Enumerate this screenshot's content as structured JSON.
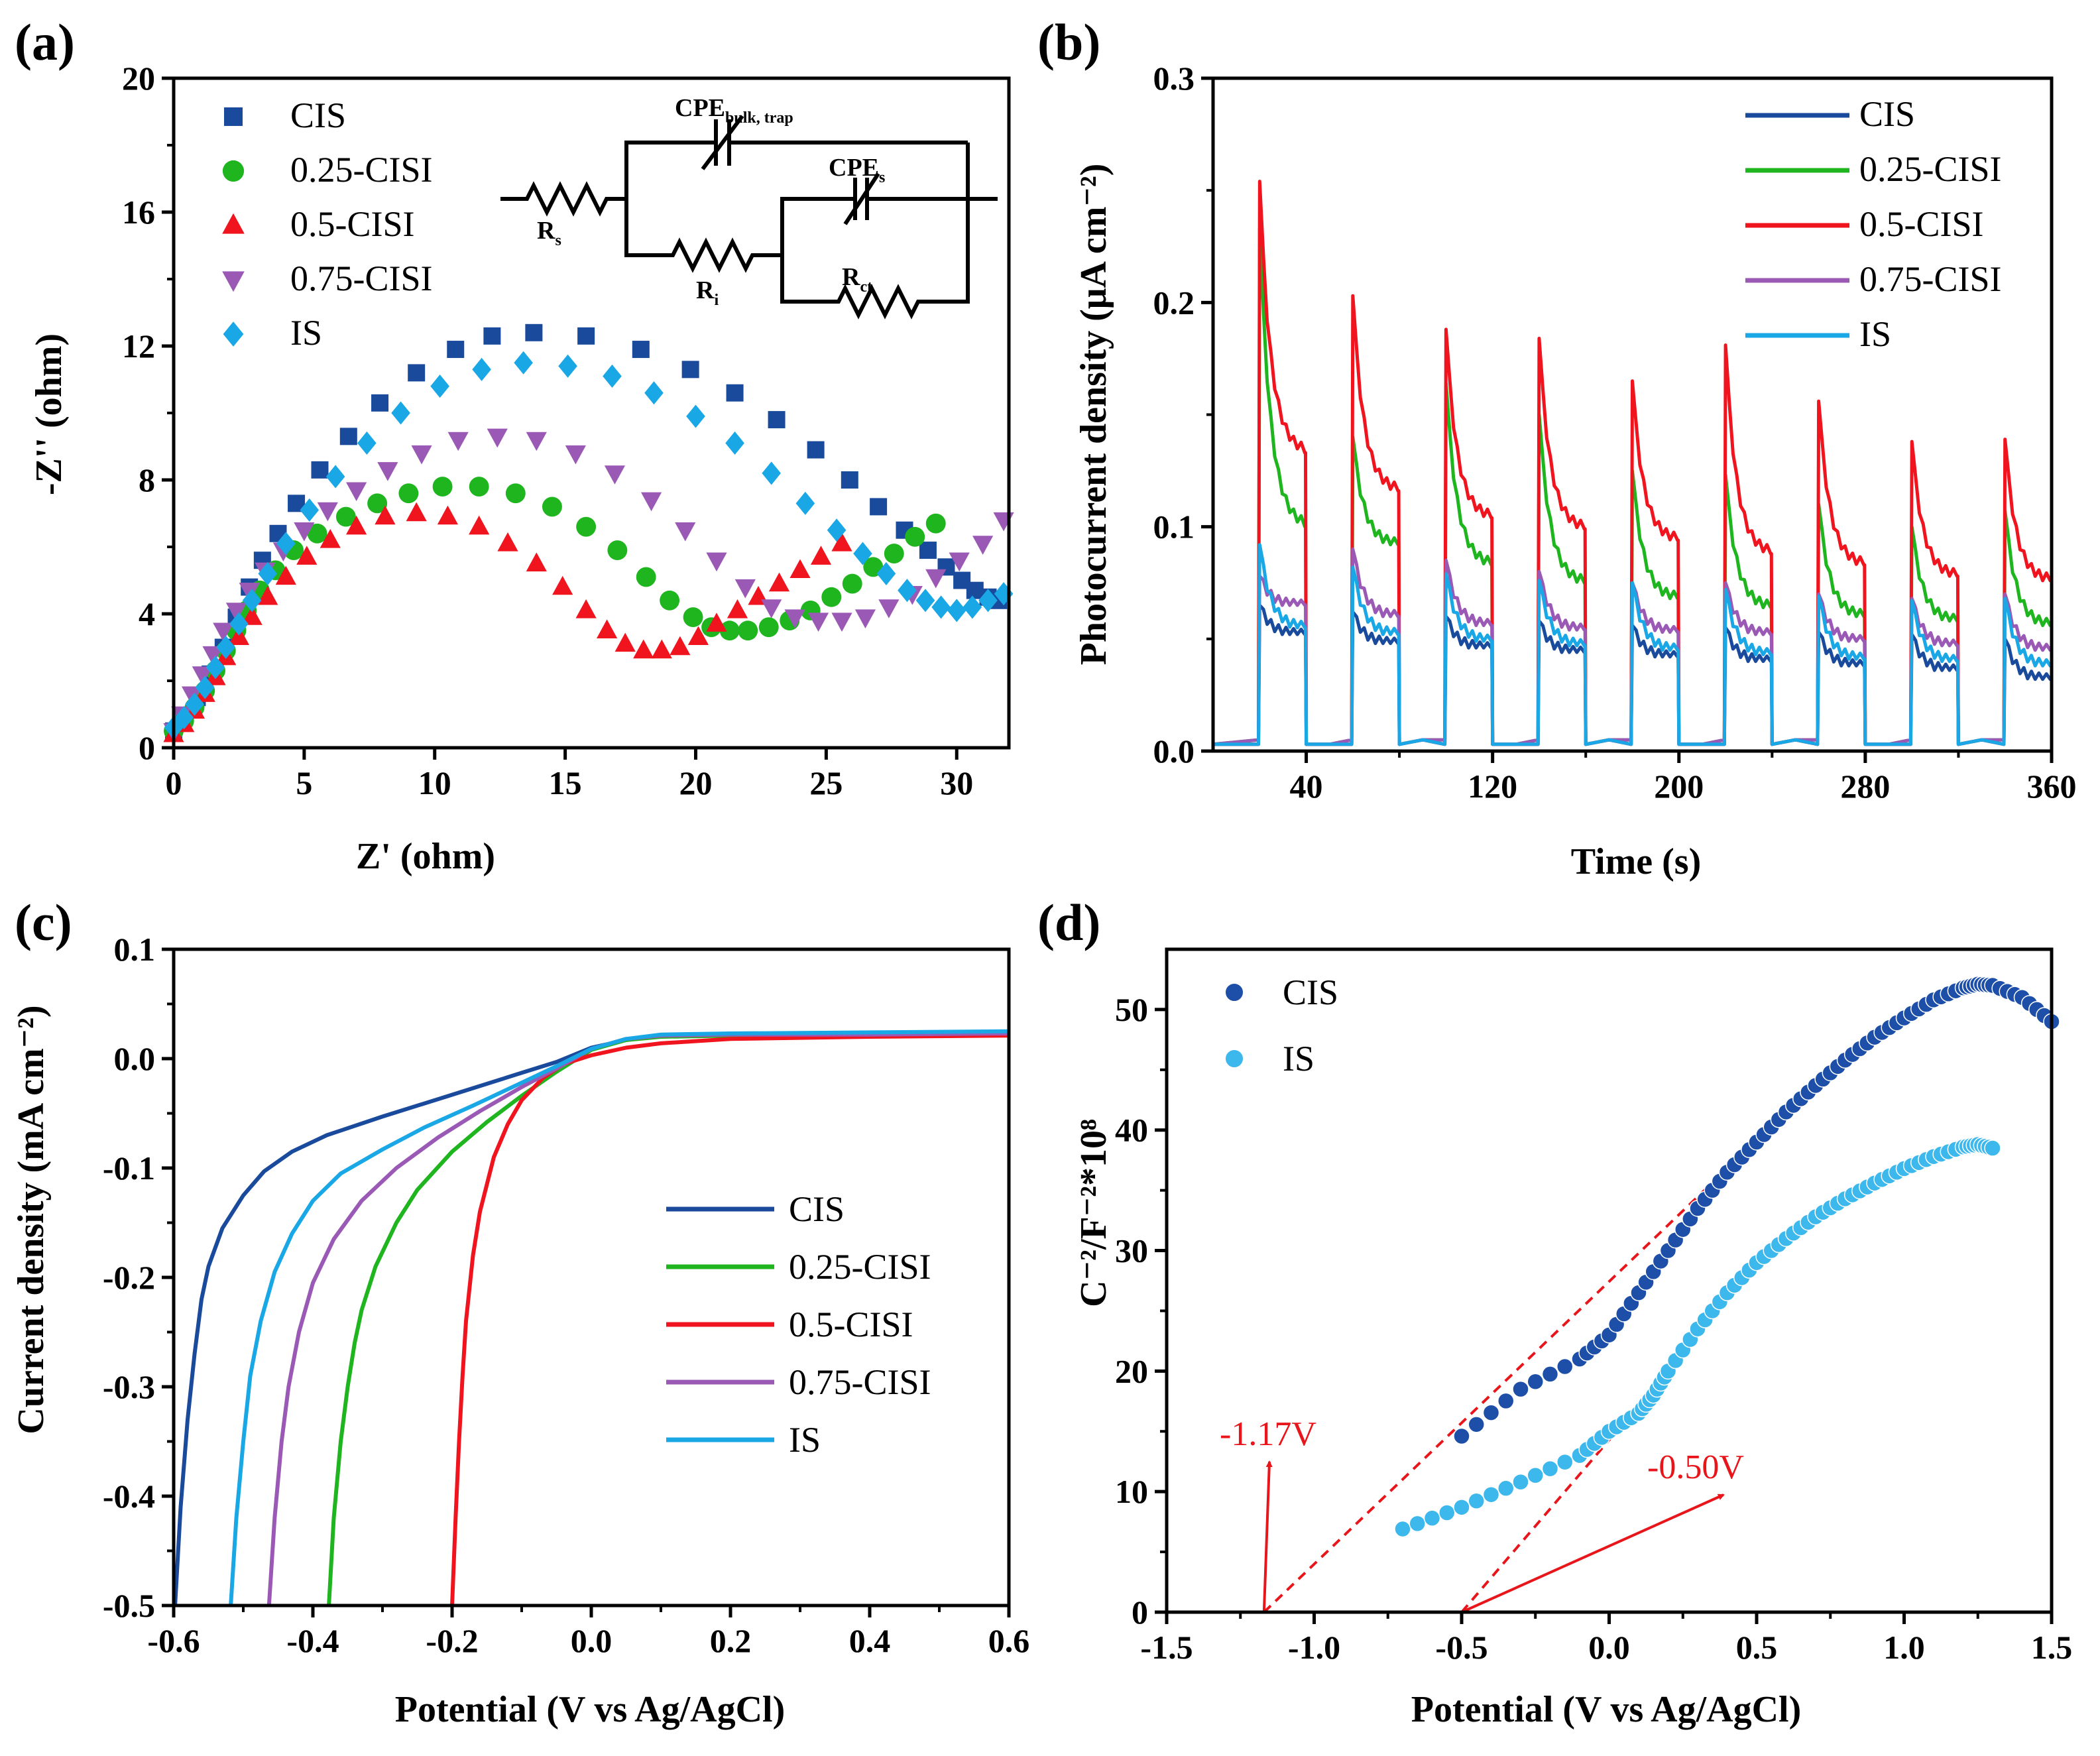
{
  "colors": {
    "CIS": "#1a4a9c",
    "0.25-CISI": "#1fb51f",
    "0.5-CISI": "#f0141e",
    "0.75-CISI": "#9b59b6",
    "IS": "#1aa7e6",
    "CIS_d": "#1d4ea8",
    "IS_d": "#3db8ec",
    "annotation": "#e8151b"
  },
  "panels": {
    "a": {
      "label": "(a)"
    },
    "b": {
      "label": "(b)"
    },
    "c": {
      "label": "(c)"
    },
    "d": {
      "label": "(d)"
    }
  },
  "circuit": {
    "rs": "R",
    "rs_sub": "s",
    "ri": "R",
    "ri_sub": "i",
    "rct": "R",
    "rct_sub": "ct",
    "cpe_bulk": "CPE",
    "cpe_bulk_sub": "bulk, trap",
    "cpe_s": "CPE",
    "cpe_s_sub": "s"
  },
  "annotations_d": {
    "left": "-1.17V",
    "right": "-0.50V"
  },
  "chart_data": [
    {
      "id": "a",
      "type": "scatter",
      "title": "",
      "xlabel": "Z' (ohm)",
      "ylabel": "-Z'' (ohm)",
      "xlim": [
        0,
        32
      ],
      "ylim": [
        0,
        20
      ],
      "xticks": [
        0,
        5,
        10,
        15,
        20,
        25,
        30
      ],
      "yticks": [
        0,
        4,
        8,
        12,
        16,
        20
      ],
      "legend": "top-left",
      "series": [
        {
          "name": "CIS",
          "marker": "square",
          "x": [
            0,
            0.4,
            0.9,
            1.4,
            1.9,
            2.4,
            2.9,
            3.4,
            4.0,
            4.7,
            5.6,
            6.7,
            7.9,
            9.3,
            10.8,
            12.2,
            13.8,
            15.8,
            17.9,
            19.8,
            21.5,
            23.1,
            24.6,
            25.9,
            27.0,
            28.0,
            28.9,
            29.6,
            30.2,
            30.7,
            31.2,
            31.6
          ],
          "y": [
            0.5,
            0.9,
            1.5,
            2.2,
            3.0,
            3.9,
            4.8,
            5.6,
            6.4,
            7.3,
            8.3,
            9.3,
            10.3,
            11.2,
            11.9,
            12.3,
            12.4,
            12.3,
            11.9,
            11.3,
            10.6,
            9.8,
            8.9,
            8.0,
            7.2,
            6.5,
            5.9,
            5.4,
            5.0,
            4.7,
            4.5,
            4.4
          ]
        },
        {
          "name": "0.25-CISI",
          "marker": "circle",
          "x": [
            0,
            0.4,
            0.8,
            1.2,
            1.6,
            2.0,
            2.4,
            2.8,
            3.3,
            3.9,
            4.6,
            5.5,
            6.6,
            7.8,
            9.0,
            10.3,
            11.7,
            13.1,
            14.5,
            15.8,
            17.0,
            18.1,
            19.0,
            19.9,
            20.6,
            21.3,
            22.0,
            22.8,
            23.6,
            24.4,
            25.2,
            26.0,
            26.8,
            27.6,
            28.4,
            29.2
          ],
          "y": [
            0.5,
            0.8,
            1.2,
            1.7,
            2.3,
            2.9,
            3.5,
            4.1,
            4.7,
            5.3,
            5.9,
            6.4,
            6.9,
            7.3,
            7.6,
            7.8,
            7.8,
            7.6,
            7.2,
            6.6,
            5.9,
            5.1,
            4.4,
            3.9,
            3.6,
            3.5,
            3.5,
            3.6,
            3.8,
            4.1,
            4.5,
            4.9,
            5.4,
            5.8,
            6.3,
            6.7
          ]
        },
        {
          "name": "0.5-CISI",
          "marker": "triangle-up",
          "x": [
            0,
            0.4,
            0.8,
            1.2,
            1.6,
            2.0,
            2.5,
            3.0,
            3.6,
            4.3,
            5.1,
            6.0,
            7.0,
            8.1,
            9.3,
            10.5,
            11.7,
            12.8,
            13.9,
            14.9,
            15.8,
            16.6,
            17.3,
            18.0,
            18.7,
            19.4,
            20.1,
            20.8,
            21.6,
            22.4,
            23.2,
            24.0,
            24.8,
            25.6
          ],
          "y": [
            0.4,
            0.7,
            1.1,
            1.6,
            2.1,
            2.7,
            3.3,
            3.9,
            4.5,
            5.1,
            5.7,
            6.2,
            6.6,
            6.9,
            7.0,
            6.9,
            6.6,
            6.1,
            5.5,
            4.8,
            4.1,
            3.5,
            3.1,
            2.9,
            2.9,
            3.0,
            3.3,
            3.7,
            4.1,
            4.5,
            4.9,
            5.3,
            5.7,
            6.1
          ]
        },
        {
          "name": "0.75-CISI",
          "marker": "triangle-down",
          "x": [
            0,
            0.3,
            0.7,
            1.1,
            1.5,
            1.9,
            2.4,
            2.9,
            3.5,
            4.2,
            5.0,
            5.9,
            7.0,
            8.2,
            9.5,
            10.9,
            12.4,
            13.9,
            15.4,
            16.9,
            18.3,
            19.6,
            20.8,
            21.9,
            22.9,
            23.8,
            24.7,
            25.6,
            26.5,
            27.4,
            28.3,
            29.2,
            30.1,
            31.0,
            31.8
          ],
          "y": [
            0.5,
            1.0,
            1.6,
            2.2,
            2.8,
            3.5,
            4.1,
            4.7,
            5.3,
            5.9,
            6.5,
            7.1,
            7.7,
            8.3,
            8.8,
            9.2,
            9.3,
            9.2,
            8.8,
            8.2,
            7.4,
            6.5,
            5.6,
            4.8,
            4.2,
            3.9,
            3.8,
            3.8,
            3.9,
            4.2,
            4.6,
            5.1,
            5.6,
            6.1,
            6.8
          ]
        },
        {
          "name": "IS",
          "marker": "diamond",
          "x": [
            0,
            0.4,
            0.8,
            1.2,
            1.6,
            2.0,
            2.5,
            3.0,
            3.6,
            4.3,
            5.2,
            6.2,
            7.4,
            8.7,
            10.2,
            11.8,
            13.4,
            15.1,
            16.8,
            18.4,
            20.0,
            21.5,
            22.9,
            24.2,
            25.4,
            26.4,
            27.3,
            28.1,
            28.8,
            29.4,
            30.0,
            30.6,
            31.2,
            31.8
          ],
          "y": [
            0.6,
            0.9,
            1.3,
            1.8,
            2.4,
            3.0,
            3.7,
            4.4,
            5.2,
            6.1,
            7.1,
            8.1,
            9.1,
            10.0,
            10.8,
            11.3,
            11.5,
            11.4,
            11.1,
            10.6,
            9.9,
            9.1,
            8.2,
            7.3,
            6.5,
            5.8,
            5.2,
            4.7,
            4.4,
            4.2,
            4.1,
            4.2,
            4.4,
            4.6
          ]
        }
      ]
    },
    {
      "id": "b",
      "type": "line",
      "title": "",
      "xlabel": "Time (s)",
      "ylabel": "Photocurrent density (μA cm⁻²)",
      "xlim": [
        0,
        360
      ],
      "ylim": [
        0,
        0.3
      ],
      "xticks": [
        40,
        120,
        200,
        280,
        360
      ],
      "yticks": [
        0.0,
        0.1,
        0.2,
        0.3
      ],
      "legend": "top-right",
      "light_on_intervals": [
        [
          20,
          40
        ],
        [
          60,
          80
        ],
        [
          100,
          120
        ],
        [
          140,
          160
        ],
        [
          180,
          200
        ],
        [
          220,
          240
        ],
        [
          260,
          280
        ],
        [
          300,
          320
        ],
        [
          340,
          360
        ]
      ],
      "series": [
        {
          "name": "CIS",
          "peak": [
            0.065,
            0.062,
            0.06,
            0.058,
            0.056,
            0.055,
            0.053,
            0.052,
            0.05
          ],
          "end": [
            0.052,
            0.048,
            0.046,
            0.044,
            0.042,
            0.04,
            0.038,
            0.036,
            0.032
          ]
        },
        {
          "name": "0.25-CISI",
          "peak": [
            0.233,
            0.14,
            0.164,
            0.15,
            0.125,
            0.123,
            0.11,
            0.1,
            0.107
          ],
          "end": [
            0.1,
            0.092,
            0.083,
            0.075,
            0.068,
            0.064,
            0.06,
            0.058,
            0.056
          ]
        },
        {
          "name": "0.5-CISI",
          "peak": [
            0.254,
            0.203,
            0.188,
            0.184,
            0.165,
            0.181,
            0.156,
            0.138,
            0.139
          ],
          "end": [
            0.133,
            0.116,
            0.104,
            0.099,
            0.094,
            0.088,
            0.083,
            0.078,
            0.076
          ]
        },
        {
          "name": "0.75-CISI",
          "peak": [
            0.078,
            0.09,
            0.085,
            0.08,
            0.075,
            0.075,
            0.07,
            0.068,
            0.07
          ],
          "end": [
            0.065,
            0.06,
            0.056,
            0.054,
            0.053,
            0.052,
            0.049,
            0.047,
            0.045
          ]
        },
        {
          "name": "IS",
          "peak": [
            0.092,
            0.082,
            0.079,
            0.076,
            0.075,
            0.072,
            0.069,
            0.067,
            0.068
          ],
          "end": [
            0.055,
            0.052,
            0.049,
            0.047,
            0.045,
            0.043,
            0.041,
            0.04,
            0.038
          ]
        }
      ]
    },
    {
      "id": "c",
      "type": "line",
      "title": "",
      "xlabel": "Potential (V vs Ag/AgCl)",
      "ylabel": "Current density (mA cm⁻²)",
      "xlim": [
        -0.6,
        0.6
      ],
      "ylim": [
        -0.5,
        0.1
      ],
      "xticks": [
        -0.6,
        -0.4,
        -0.2,
        0.0,
        0.2,
        0.4,
        0.6
      ],
      "yticks": [
        -0.5,
        -0.4,
        -0.3,
        -0.2,
        -0.1,
        0.0,
        0.1
      ],
      "legend": "center-right",
      "series": [
        {
          "name": "CIS",
          "x": [
            -0.598,
            -0.59,
            -0.58,
            -0.57,
            -0.56,
            -0.55,
            -0.53,
            -0.5,
            -0.47,
            -0.43,
            -0.38,
            -0.3,
            -0.2,
            -0.1,
            -0.05,
            0.0,
            0.05,
            0.1,
            0.2,
            0.4,
            0.6
          ],
          "y": [
            -0.5,
            -0.41,
            -0.33,
            -0.27,
            -0.22,
            -0.19,
            -0.155,
            -0.125,
            -0.103,
            -0.085,
            -0.07,
            -0.053,
            -0.033,
            -0.013,
            -0.003,
            0.01,
            0.017,
            0.021,
            0.022,
            0.022,
            0.023
          ]
        },
        {
          "name": "0.25-CISI",
          "x": [
            -0.377,
            -0.37,
            -0.36,
            -0.35,
            -0.34,
            -0.33,
            -0.31,
            -0.28,
            -0.25,
            -0.2,
            -0.15,
            -0.1,
            -0.05,
            0.0,
            0.05,
            0.1,
            0.2,
            0.4,
            0.6
          ],
          "y": [
            -0.5,
            -0.42,
            -0.35,
            -0.3,
            -0.26,
            -0.23,
            -0.19,
            -0.15,
            -0.12,
            -0.085,
            -0.058,
            -0.034,
            -0.012,
            0.008,
            0.017,
            0.02,
            0.021,
            0.021,
            0.022
          ]
        },
        {
          "name": "0.5-CISI",
          "x": [
            -0.2,
            -0.195,
            -0.19,
            -0.185,
            -0.18,
            -0.17,
            -0.16,
            -0.14,
            -0.12,
            -0.1,
            -0.07,
            -0.04,
            0.0,
            0.05,
            0.1,
            0.2,
            0.4,
            0.6
          ],
          "y": [
            -0.5,
            -0.42,
            -0.35,
            -0.29,
            -0.24,
            -0.18,
            -0.14,
            -0.09,
            -0.06,
            -0.038,
            -0.018,
            -0.005,
            0.003,
            0.01,
            0.014,
            0.018,
            0.02,
            0.021
          ]
        },
        {
          "name": "0.75-CISI",
          "x": [
            -0.463,
            -0.455,
            -0.445,
            -0.435,
            -0.42,
            -0.4,
            -0.37,
            -0.33,
            -0.28,
            -0.22,
            -0.16,
            -0.1,
            -0.05,
            0.0,
            0.05,
            0.1,
            0.2,
            0.4,
            0.6
          ],
          "y": [
            -0.5,
            -0.42,
            -0.35,
            -0.3,
            -0.25,
            -0.205,
            -0.165,
            -0.13,
            -0.1,
            -0.072,
            -0.048,
            -0.026,
            -0.009,
            0.009,
            0.018,
            0.021,
            0.022,
            0.022,
            0.023
          ]
        },
        {
          "name": "IS",
          "x": [
            -0.518,
            -0.51,
            -0.5,
            -0.49,
            -0.475,
            -0.455,
            -0.43,
            -0.4,
            -0.36,
            -0.3,
            -0.24,
            -0.17,
            -0.1,
            -0.05,
            0.0,
            0.05,
            0.1,
            0.2,
            0.4,
            0.6
          ],
          "y": [
            -0.5,
            -0.42,
            -0.35,
            -0.29,
            -0.24,
            -0.195,
            -0.16,
            -0.13,
            -0.105,
            -0.083,
            -0.063,
            -0.043,
            -0.022,
            -0.007,
            0.009,
            0.018,
            0.022,
            0.023,
            0.024,
            0.025
          ]
        }
      ]
    },
    {
      "id": "d",
      "type": "scatter",
      "title": "",
      "xlabel": "Potential (V vs Ag/AgCl)",
      "ylabel": "C⁻²/F⁻²*10⁸",
      "xlim": [
        -1.5,
        1.5
      ],
      "ylim": [
        0,
        55
      ],
      "xticks": [
        -1.5,
        -1.0,
        -0.5,
        0.0,
        0.5,
        1.0,
        1.5
      ],
      "yticks": [
        0,
        10,
        20,
        30,
        40,
        50
      ],
      "legend": "top-left",
      "series": [
        {
          "name": "CIS",
          "x": [
            -0.5,
            -0.3,
            -0.1,
            0.0,
            0.1,
            0.2,
            0.3,
            0.4,
            0.5,
            0.6,
            0.7,
            0.8,
            0.9,
            1.0,
            1.1,
            1.2,
            1.25,
            1.3,
            1.4,
            1.5
          ],
          "y": [
            14.6,
            18.5,
            21.0,
            23.0,
            26.5,
            30.0,
            33.5,
            36.5,
            39.0,
            41.5,
            43.7,
            45.8,
            47.7,
            49.3,
            50.8,
            51.8,
            52.1,
            52.0,
            51.0,
            49.0
          ]
        },
        {
          "name": "IS",
          "x": [
            -0.7,
            -0.5,
            -0.3,
            -0.1,
            0.0,
            0.1,
            0.15,
            0.2,
            0.3,
            0.4,
            0.5,
            0.6,
            0.7,
            0.8,
            0.9,
            1.0,
            1.1,
            1.2,
            1.25,
            1.3
          ],
          "y": [
            6.9,
            8.7,
            10.8,
            13.0,
            15.0,
            16.5,
            18.0,
            20.0,
            23.5,
            26.5,
            29.0,
            31.0,
            32.8,
            34.3,
            35.6,
            36.8,
            37.8,
            38.6,
            38.8,
            38.5
          ]
        }
      ],
      "fits": [
        {
          "name": "CIS fit",
          "x": [
            -1.17,
            0.6
          ],
          "y": [
            0,
            41.5
          ]
        },
        {
          "name": "IS fit",
          "x": [
            -0.5,
            0.2
          ],
          "y": [
            0,
            20.0
          ]
        }
      ],
      "intercepts": [
        -1.17,
        -0.5
      ]
    }
  ]
}
